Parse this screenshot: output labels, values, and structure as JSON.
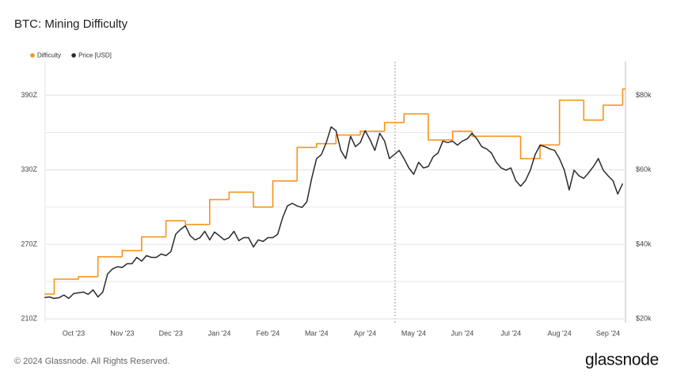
{
  "chart_data": {
    "type": "line",
    "title": "BTC: Mining Difficulty",
    "categories": [
      null,
      null,
      null,
      null,
      null,
      null,
      "Oct '23",
      null,
      null,
      null,
      null,
      null,
      null,
      null,
      null,
      null,
      "Nov '23",
      null,
      null,
      null,
      null,
      null,
      null,
      null,
      null,
      null,
      "Dec '23",
      null,
      null,
      null,
      null,
      null,
      null,
      null,
      null,
      null,
      "Jan '24",
      null,
      null,
      null,
      null,
      null,
      null,
      null,
      null,
      null,
      "Feb '24",
      null,
      null,
      null,
      null,
      null,
      null,
      null,
      null,
      null,
      "Mar '24",
      null,
      null,
      null,
      null,
      null,
      null,
      null,
      null,
      null,
      "Apr '24",
      null,
      null,
      null,
      null,
      null,
      null,
      null,
      null,
      null,
      "May '24",
      null,
      null,
      null,
      null,
      null,
      null,
      null,
      null,
      null,
      "Jun '24",
      null,
      null,
      null,
      null,
      null,
      null,
      null,
      null,
      null,
      "Jul '24",
      null,
      null,
      null,
      null,
      null,
      null,
      null,
      null,
      null,
      "Aug '24",
      null,
      null,
      null,
      null,
      null,
      null,
      null,
      null,
      null,
      "Sep '24",
      null,
      null,
      null
    ],
    "series": [
      {
        "name": "Difficulty",
        "color": "#f7931a",
        "drawstyle": "steps-post",
        "values": [
          230,
          230,
          242,
          242,
          242,
          242,
          242,
          244,
          244,
          244,
          244,
          260,
          260,
          260,
          260,
          260,
          265,
          265,
          265,
          265,
          276,
          276,
          276,
          276,
          276,
          289,
          289,
          289,
          289,
          286,
          286,
          286,
          286,
          286,
          306,
          306,
          306,
          306,
          312,
          312,
          312,
          312,
          312,
          300,
          300,
          300,
          300,
          321,
          321,
          321,
          321,
          321,
          348,
          348,
          348,
          348,
          351,
          351,
          351,
          351,
          358,
          358,
          358,
          358,
          358,
          361,
          361,
          361,
          361,
          361,
          368,
          368,
          368,
          368,
          375,
          375,
          375,
          375,
          375,
          354,
          354,
          354,
          354,
          354,
          361,
          361,
          361,
          361,
          357,
          357,
          357,
          357,
          357,
          357,
          357,
          357,
          357,
          357,
          339,
          339,
          339,
          339,
          350,
          350,
          350,
          350,
          386,
          386,
          386,
          386,
          386,
          370,
          370,
          370,
          370,
          382,
          382,
          382,
          382,
          395
        ]
      },
      {
        "name": "Price [USD]",
        "color": "#2b2b2b",
        "axis": "y2",
        "values": [
          25700,
          25900,
          25500,
          25700,
          26400,
          25500,
          26800,
          27000,
          27200,
          26600,
          27800,
          25900,
          27200,
          32100,
          33400,
          34000,
          33800,
          34800,
          34800,
          36500,
          35500,
          37000,
          36500,
          36500,
          37400,
          37000,
          38000,
          42700,
          44000,
          45000,
          42300,
          41200,
          41800,
          43500,
          41200,
          43300,
          42300,
          41200,
          41800,
          43500,
          41000,
          41800,
          41800,
          39300,
          41200,
          40800,
          41800,
          41800,
          42700,
          47100,
          50300,
          51000,
          50300,
          49900,
          51400,
          57700,
          63000,
          64100,
          67300,
          71500,
          70500,
          65200,
          63000,
          69000,
          66200,
          67300,
          70500,
          68100,
          65200,
          69800,
          67700,
          63000,
          64100,
          65200,
          63000,
          60500,
          58800,
          62000,
          60500,
          60900,
          63500,
          64500,
          67700,
          67300,
          67700,
          66600,
          67700,
          68300,
          69800,
          68300,
          66200,
          65600,
          64500,
          62000,
          60500,
          59900,
          60500,
          57100,
          55600,
          57100,
          59900,
          64100,
          66600,
          66200,
          65600,
          65200,
          63000,
          59900,
          54600,
          59900,
          58400,
          57700,
          59200,
          60900,
          63000,
          59900,
          58400,
          57100,
          53500,
          56300
        ]
      }
    ],
    "ylim": [
      207,
      417
    ],
    "yticks": [
      {
        "value": 210,
        "label": "210Z"
      },
      {
        "value": 270,
        "label": "270Z"
      },
      {
        "value": 330,
        "label": "330Z"
      },
      {
        "value": 390,
        "label": "390Z"
      }
    ],
    "y_minor_ticks": [
      240,
      300,
      360
    ],
    "y2lim": [
      19000,
      89000
    ],
    "y2ticks": [
      {
        "value": 20000,
        "label": "$20k"
      },
      {
        "value": 40000,
        "label": "$40k"
      },
      {
        "value": 60000,
        "label": "$60k"
      },
      {
        "value": 80000,
        "label": "$80k"
      }
    ],
    "grid": true,
    "legend": "top-left"
  },
  "footer": {
    "copyright": "© 2024 Glassnode. All Rights Reserved.",
    "logo": "glassnode"
  }
}
